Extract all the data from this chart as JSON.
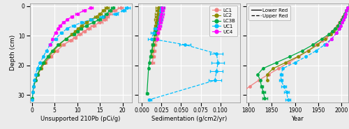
{
  "colors": {
    "LC1": "#F08080",
    "LC2": "#8B8B00",
    "LC3B": "#00AA44",
    "UC1": "#00BFFF",
    "UC4": "#FF00FF"
  },
  "bg_color": "#EBEBEB",
  "grid_color": "white",
  "panel1": {
    "title": "Unsupported 210Pb (pCi/g)",
    "xlim": [
      -0.5,
      22
    ],
    "xticks": [
      0,
      5,
      10,
      15,
      20
    ],
    "ylim": [
      32.5,
      -1.0
    ],
    "yticks": [
      0,
      10,
      20,
      30
    ],
    "LC1_solid": {
      "depth": [
        0.5,
        1.5,
        2.5,
        3.5,
        4.5,
        5.5,
        6.5,
        7.5,
        8.5,
        9.5,
        10.5,
        11.5,
        13.0,
        15.0,
        17.0,
        19.0,
        21.0,
        23.0,
        25.0,
        27.0,
        29.0
      ],
      "value": [
        19.5,
        18.2,
        17.0,
        16.5,
        16.0,
        15.0,
        13.5,
        12.5,
        11.5,
        10.5,
        9.5,
        8.5,
        7.0,
        5.5,
        4.2,
        3.0,
        2.0,
        1.3,
        0.8,
        0.4,
        0.2
      ],
      "xerr_lo": [
        0.5,
        0.5,
        0.5,
        0.5,
        0.5,
        0.5,
        0.5,
        0.4,
        0.4,
        0.4,
        0.4,
        0.4,
        0.3,
        0.3,
        0.3,
        0.3,
        0.2,
        0.2,
        0.1,
        0.1,
        0.1
      ],
      "xerr_hi": [
        0.5,
        0.5,
        0.5,
        0.5,
        0.5,
        0.5,
        0.5,
        0.4,
        0.4,
        0.4,
        0.4,
        0.4,
        0.3,
        0.3,
        0.3,
        0.3,
        0.2,
        0.2,
        0.1,
        0.1,
        0.1
      ]
    },
    "LC2_solid": {
      "depth": [
        0.5,
        1.5,
        2.5,
        3.5,
        4.5,
        5.5,
        6.5,
        7.5,
        8.5,
        9.5,
        11.0,
        13.0,
        15.0,
        17.0,
        19.0,
        21.0,
        23.0,
        25.0
      ],
      "value": [
        16.5,
        15.8,
        15.0,
        14.2,
        13.0,
        12.0,
        11.0,
        10.2,
        9.5,
        8.8,
        7.5,
        6.0,
        4.8,
        3.8,
        2.8,
        2.0,
        1.3,
        0.7
      ],
      "xerr_lo": [
        0.4,
        0.4,
        0.4,
        0.4,
        0.4,
        0.3,
        0.3,
        0.3,
        0.3,
        0.3,
        0.3,
        0.3,
        0.2,
        0.2,
        0.2,
        0.2,
        0.1,
        0.1
      ],
      "xerr_hi": [
        0.4,
        0.4,
        0.4,
        0.4,
        0.4,
        0.3,
        0.3,
        0.3,
        0.3,
        0.3,
        0.3,
        0.3,
        0.2,
        0.2,
        0.2,
        0.2,
        0.1,
        0.1
      ]
    },
    "LC3B_solid": {
      "depth": [
        0.5,
        1.5,
        2.5,
        3.5,
        4.5,
        5.5,
        6.5,
        7.5,
        8.5,
        9.5,
        11.0,
        13.0,
        15.0,
        17.0,
        19.0,
        21.0,
        23.0,
        25.0,
        27.0,
        29.0,
        31.0
      ],
      "value": [
        17.8,
        17.2,
        16.5,
        15.8,
        14.8,
        13.5,
        12.0,
        10.8,
        10.0,
        9.2,
        7.5,
        5.8,
        4.5,
        3.5,
        2.5,
        1.8,
        1.2,
        0.8,
        0.4,
        0.2,
        0.1
      ],
      "xerr_lo": [
        0.4,
        0.4,
        0.4,
        0.4,
        0.4,
        0.3,
        0.3,
        0.3,
        0.3,
        0.3,
        0.3,
        0.2,
        0.2,
        0.2,
        0.2,
        0.1,
        0.1,
        0.1,
        0.1,
        0.05,
        0.05
      ],
      "xerr_hi": [
        0.4,
        0.4,
        0.4,
        0.4,
        0.4,
        0.3,
        0.3,
        0.3,
        0.3,
        0.3,
        0.3,
        0.2,
        0.2,
        0.2,
        0.2,
        0.1,
        0.1,
        0.1,
        0.1,
        0.05,
        0.05
      ]
    },
    "UC1_dashed": {
      "depth": [
        0.5,
        1.5,
        2.5,
        3.5,
        4.5,
        5.5,
        6.5,
        7.5,
        9.0,
        11.0,
        13.0,
        15.0,
        17.0,
        19.0,
        21.0,
        23.0,
        25.0,
        27.0,
        29.0,
        31.5
      ],
      "value": [
        21.0,
        20.2,
        18.5,
        15.5,
        13.0,
        11.0,
        9.2,
        7.8,
        6.5,
        5.2,
        4.0,
        3.2,
        2.5,
        1.8,
        1.2,
        0.8,
        0.5,
        0.3,
        0.2,
        0.1
      ],
      "xerr_lo": [
        0.5,
        0.5,
        0.5,
        0.5,
        0.4,
        0.4,
        0.4,
        0.3,
        0.3,
        0.3,
        0.2,
        0.2,
        0.2,
        0.2,
        0.1,
        0.1,
        0.1,
        0.1,
        0.05,
        0.05
      ],
      "xerr_hi": [
        0.5,
        0.5,
        0.5,
        0.5,
        0.4,
        0.4,
        0.4,
        0.3,
        0.3,
        0.3,
        0.2,
        0.2,
        0.2,
        0.2,
        0.1,
        0.1,
        0.1,
        0.1,
        0.05,
        0.05
      ]
    },
    "UC4_dashed": {
      "depth": [
        0.5,
        1.5,
        2.5,
        3.5,
        4.5,
        5.5,
        6.5,
        7.5,
        9.0,
        11.0,
        13.0
      ],
      "value": [
        13.0,
        11.5,
        10.0,
        8.8,
        7.8,
        7.0,
        6.2,
        5.8,
        5.2,
        4.5,
        4.0
      ],
      "xerr_lo": [
        0.4,
        0.4,
        0.4,
        0.3,
        0.3,
        0.3,
        0.3,
        0.3,
        0.3,
        0.2,
        0.2
      ],
      "xerr_hi": [
        0.4,
        0.4,
        0.4,
        0.3,
        0.3,
        0.3,
        0.3,
        0.3,
        0.3,
        0.2,
        0.2
      ]
    }
  },
  "panel2": {
    "title": "Sedimentation (g/cm2/yr)",
    "xlim": [
      -0.005,
      0.125
    ],
    "xticks": [
      0.0,
      0.025,
      0.05,
      0.075,
      0.1
    ],
    "ylim": [
      32.5,
      -1.0
    ],
    "yticks": [
      0,
      10,
      20,
      30
    ],
    "LC1_solid": {
      "depth": [
        0.5,
        1.5,
        2.5,
        3.5,
        4.5,
        5.5,
        6.5,
        7.5,
        8.5,
        9.5,
        10.5,
        11.5,
        13.0,
        15.0,
        17.0,
        19.0
      ],
      "value": [
        0.023,
        0.0225,
        0.022,
        0.0215,
        0.021,
        0.0205,
        0.02,
        0.0195,
        0.019,
        0.0185,
        0.018,
        0.0175,
        0.0165,
        0.0155,
        0.0145,
        0.0135
      ],
      "xerr_lo": [
        0.003,
        0.003,
        0.003,
        0.003,
        0.003,
        0.003,
        0.003,
        0.003,
        0.003,
        0.003,
        0.002,
        0.002,
        0.002,
        0.002,
        0.002,
        0.002
      ],
      "xerr_hi": [
        0.003,
        0.003,
        0.003,
        0.003,
        0.003,
        0.003,
        0.003,
        0.003,
        0.003,
        0.003,
        0.002,
        0.002,
        0.002,
        0.002,
        0.002,
        0.002
      ]
    },
    "LC2_solid": {
      "depth": [
        0.5,
        1.5,
        2.5,
        3.5,
        4.5,
        5.5,
        6.5,
        7.5,
        8.5,
        9.5,
        11.0,
        13.0,
        15.0,
        17.0
      ],
      "value": [
        0.021,
        0.0205,
        0.02,
        0.0195,
        0.019,
        0.0185,
        0.018,
        0.0175,
        0.017,
        0.0165,
        0.0155,
        0.0145,
        0.0135,
        0.0125
      ],
      "xerr_lo": [
        0.003,
        0.003,
        0.003,
        0.003,
        0.003,
        0.002,
        0.002,
        0.002,
        0.002,
        0.002,
        0.002,
        0.002,
        0.002,
        0.002
      ],
      "xerr_hi": [
        0.003,
        0.003,
        0.003,
        0.003,
        0.003,
        0.002,
        0.002,
        0.002,
        0.002,
        0.002,
        0.002,
        0.002,
        0.002,
        0.002
      ]
    },
    "LC3B_solid": {
      "depth": [
        0.5,
        1.5,
        2.5,
        3.5,
        4.5,
        5.5,
        6.5,
        7.5,
        8.5,
        9.5,
        11.0,
        13.0,
        15.0,
        17.0,
        19.0,
        21.0,
        29.5
      ],
      "value": [
        0.025,
        0.024,
        0.0235,
        0.0225,
        0.022,
        0.021,
        0.02,
        0.019,
        0.018,
        0.017,
        0.0155,
        0.014,
        0.0125,
        0.011,
        0.0095,
        0.0085,
        0.0065
      ],
      "xerr_lo": [
        0.003,
        0.003,
        0.003,
        0.003,
        0.003,
        0.002,
        0.002,
        0.002,
        0.002,
        0.002,
        0.002,
        0.002,
        0.002,
        0.001,
        0.001,
        0.001,
        0.001
      ],
      "xerr_hi": [
        0.003,
        0.003,
        0.003,
        0.003,
        0.003,
        0.002,
        0.002,
        0.002,
        0.002,
        0.002,
        0.002,
        0.002,
        0.002,
        0.001,
        0.001,
        0.001,
        0.001
      ]
    },
    "UC1_dashed": {
      "depth": [
        0.5,
        1.5,
        2.5,
        3.5,
        4.5,
        5.5,
        6.5,
        7.5,
        9.0,
        11.0,
        13.0,
        16.0,
        19.0,
        22.0,
        25.0,
        31.5
      ],
      "value": [
        0.0245,
        0.024,
        0.0235,
        0.023,
        0.0225,
        0.022,
        0.0215,
        0.018,
        0.015,
        0.012,
        0.055,
        0.095,
        0.097,
        0.095,
        0.093,
        0.01
      ],
      "xerr_lo": [
        0.003,
        0.003,
        0.003,
        0.003,
        0.003,
        0.003,
        0.003,
        0.003,
        0.004,
        0.004,
        0.007,
        0.008,
        0.008,
        0.008,
        0.008,
        0.002
      ],
      "xerr_hi": [
        0.003,
        0.003,
        0.003,
        0.003,
        0.003,
        0.003,
        0.003,
        0.003,
        0.004,
        0.004,
        0.007,
        0.008,
        0.008,
        0.008,
        0.008,
        0.002
      ]
    },
    "UC4_dashed": {
      "depth": [
        0.5,
        1.5,
        2.5,
        3.5,
        4.5,
        5.5,
        6.5,
        7.5,
        9.0,
        11.0
      ],
      "value": [
        0.026,
        0.0255,
        0.0248,
        0.024,
        0.0232,
        0.0225,
        0.0218,
        0.021,
        0.02,
        0.019
      ],
      "xerr_lo": [
        0.003,
        0.003,
        0.003,
        0.003,
        0.003,
        0.003,
        0.003,
        0.003,
        0.002,
        0.002
      ],
      "xerr_hi": [
        0.003,
        0.003,
        0.003,
        0.003,
        0.003,
        0.003,
        0.003,
        0.003,
        0.002,
        0.002
      ]
    }
  },
  "panel3": {
    "title": "Year",
    "xlim": [
      1795,
      2015
    ],
    "xticks": [
      1800,
      1850,
      1900,
      1950,
      2000
    ],
    "ylim": [
      32.5,
      -1.0
    ],
    "yticks": [
      0,
      10,
      20,
      30
    ],
    "LC1_solid": {
      "depth": [
        0.5,
        1.5,
        2.5,
        3.5,
        4.5,
        5.5,
        6.5,
        7.5,
        8.5,
        9.5,
        10.5,
        11.5,
        13.0,
        15.0,
        17.0,
        19.0,
        21.0,
        23.0,
        25.0,
        27.0,
        29.0
      ],
      "value": [
        2013,
        2010,
        2007,
        2003,
        2000,
        1996,
        1991,
        1986,
        1980,
        1974,
        1967,
        1959,
        1946,
        1928,
        1908,
        1887,
        1865,
        1843,
        1822,
        1803,
        1786
      ],
      "xerr_lo": [
        0,
        0,
        0,
        0,
        0,
        0,
        0,
        0,
        0,
        0,
        0,
        0,
        0,
        0,
        0,
        0,
        0,
        0,
        0,
        0,
        0
      ],
      "xerr_hi": [
        0,
        0,
        0,
        0,
        0,
        0,
        0,
        0,
        0,
        0,
        0,
        0,
        0,
        0,
        0,
        0,
        0,
        0,
        0,
        0,
        0
      ]
    },
    "LC2_solid": {
      "depth": [
        0.5,
        1.5,
        2.5,
        3.5,
        4.5,
        5.5,
        6.5,
        7.5,
        8.5,
        9.5,
        11.0,
        13.0,
        15.0,
        17.0,
        19.0,
        21.0,
        23.0,
        25.0
      ],
      "value": [
        2013,
        2010,
        2007,
        2004,
        2001,
        1997,
        1993,
        1988,
        1983,
        1977,
        1965,
        1949,
        1929,
        1906,
        1880,
        1853,
        1840,
        1840
      ],
      "xerr_lo": [
        0,
        0,
        0,
        0,
        0,
        0,
        0,
        0,
        0,
        0,
        0,
        0,
        0,
        0,
        0,
        0,
        0,
        0
      ],
      "xerr_hi": [
        0,
        0,
        0,
        0,
        0,
        0,
        0,
        0,
        0,
        0,
        0,
        0,
        0,
        0,
        0,
        0,
        0,
        0
      ]
    },
    "LC3B_solid": {
      "depth": [
        0.5,
        1.5,
        2.5,
        3.5,
        4.5,
        5.5,
        6.5,
        7.5,
        8.5,
        9.5,
        11.0,
        13.0,
        15.0,
        17.0,
        19.0,
        21.0,
        23.0,
        25.0,
        27.0,
        29.0,
        31.0
      ],
      "value": [
        2013,
        2010,
        2007,
        2004,
        2001,
        1997,
        1992,
        1986,
        1980,
        1973,
        1958,
        1939,
        1916,
        1889,
        1860,
        1831,
        1820,
        1825,
        1828,
        1832,
        1835
      ],
      "xerr_lo": [
        0,
        0,
        0,
        0,
        0,
        0,
        0,
        0,
        0,
        0,
        0,
        0,
        0,
        0,
        0,
        0,
        0,
        2,
        3,
        4,
        5
      ],
      "xerr_hi": [
        0,
        0,
        0,
        0,
        0,
        0,
        0,
        0,
        0,
        0,
        0,
        0,
        0,
        0,
        0,
        0,
        0,
        2,
        3,
        4,
        5
      ]
    },
    "UC1_dashed": {
      "depth": [
        0.5,
        1.5,
        2.5,
        3.5,
        4.5,
        5.5,
        6.5,
        7.5,
        9.0,
        11.0,
        13.0,
        15.0,
        17.0,
        19.0,
        21.0,
        23.0,
        25.0,
        27.0,
        29.0,
        31.5
      ],
      "value": [
        2013,
        2011,
        2009,
        2007,
        2005,
        2002,
        1999,
        1996,
        1990,
        1979,
        1964,
        1946,
        1924,
        1900,
        1874,
        1870,
        1870,
        1876,
        1882,
        1885
      ],
      "xerr_lo": [
        0,
        0,
        0,
        0,
        0,
        0,
        0,
        0,
        0,
        0,
        0,
        0,
        0,
        0,
        0,
        3,
        4,
        5,
        5,
        5
      ],
      "xerr_hi": [
        0,
        0,
        0,
        0,
        0,
        0,
        0,
        0,
        0,
        0,
        0,
        0,
        0,
        0,
        0,
        3,
        4,
        5,
        5,
        5
      ]
    },
    "UC4_dashed": {
      "depth": [
        0.5,
        1.5,
        2.5,
        3.5,
        4.5,
        5.5,
        6.5,
        7.5,
        9.0,
        11.0,
        13.0
      ],
      "value": [
        2013,
        2011,
        2009,
        2007,
        2005,
        2002,
        1999,
        1996,
        1990,
        1979,
        1968
      ],
      "xerr_lo": [
        0,
        0,
        0,
        0,
        0,
        0,
        0,
        0,
        0,
        1,
        2
      ],
      "xerr_hi": [
        0,
        0,
        0,
        0,
        0,
        0,
        0,
        0,
        0,
        1,
        2
      ]
    }
  }
}
